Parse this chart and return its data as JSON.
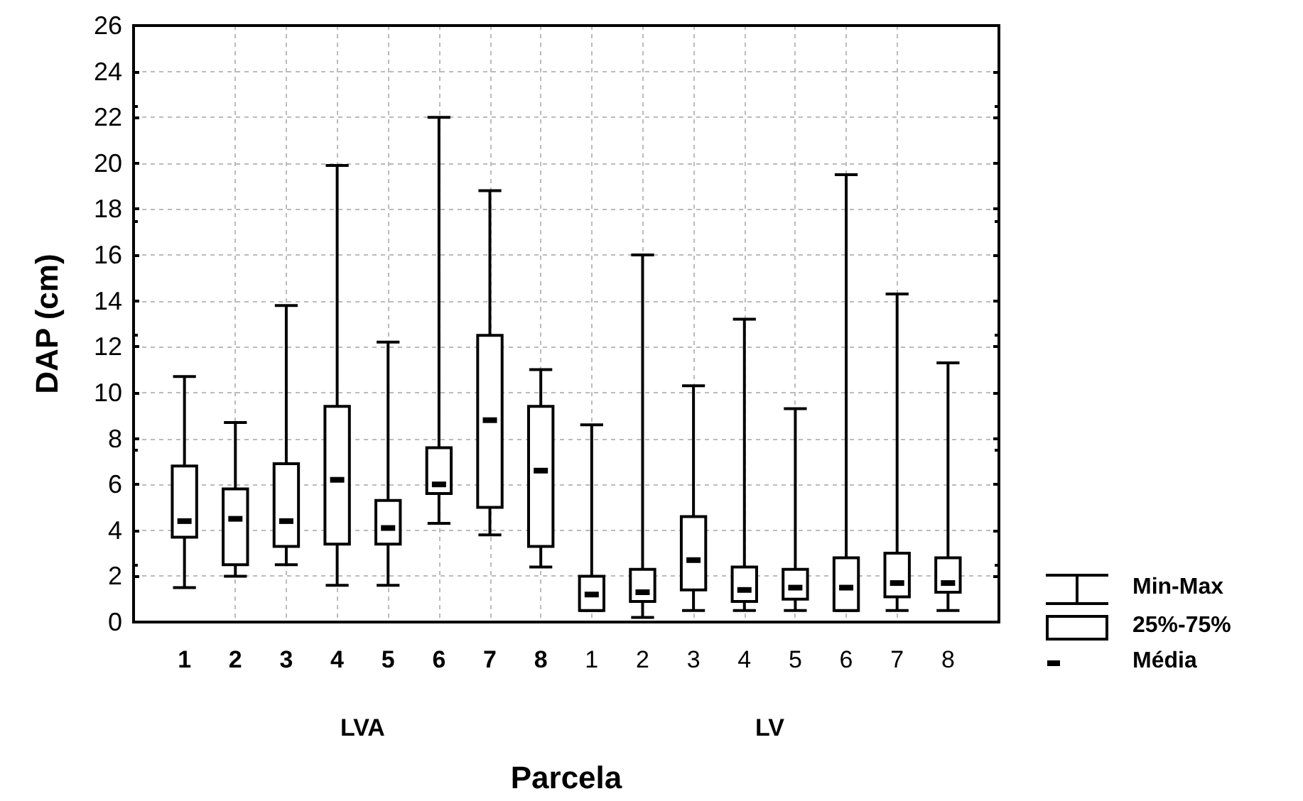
{
  "chart_data": {
    "type": "box",
    "xlabel": "Parcela",
    "ylabel": "DAP (cm)",
    "categories": [
      "1",
      "2",
      "3",
      "4",
      "5",
      "6",
      "7",
      "8",
      "1",
      "2",
      "3",
      "4",
      "5",
      "6",
      "7",
      "8"
    ],
    "boxes": [
      {
        "low": 1.5,
        "q1": 3.7,
        "mean": 4.4,
        "q3": 6.8,
        "high": 10.7
      },
      {
        "low": 2.0,
        "q1": 2.5,
        "mean": 4.5,
        "q3": 5.8,
        "high": 8.7
      },
      {
        "low": 2.5,
        "q1": 3.3,
        "mean": 4.4,
        "q3": 6.9,
        "high": 13.8
      },
      {
        "low": 1.6,
        "q1": 3.4,
        "mean": 6.2,
        "q3": 9.4,
        "high": 19.9
      },
      {
        "low": 1.6,
        "q1": 3.4,
        "mean": 4.1,
        "q3": 5.3,
        "high": 12.2
      },
      {
        "low": 4.3,
        "q1": 5.6,
        "mean": 6.0,
        "q3": 7.6,
        "high": 22.0
      },
      {
        "low": 3.8,
        "q1": 5.0,
        "mean": 8.8,
        "q3": 12.5,
        "high": 18.8
      },
      {
        "low": 2.4,
        "q1": 3.3,
        "mean": 6.6,
        "q3": 9.4,
        "high": 11.0
      },
      {
        "low": 0.5,
        "q1": 0.5,
        "mean": 1.2,
        "q3": 2.0,
        "high": 8.6
      },
      {
        "low": 0.2,
        "q1": 0.9,
        "mean": 1.3,
        "q3": 2.3,
        "high": 16.0
      },
      {
        "low": 0.5,
        "q1": 1.4,
        "mean": 2.7,
        "q3": 4.6,
        "high": 10.3
      },
      {
        "low": 0.5,
        "q1": 0.9,
        "mean": 1.4,
        "q3": 2.4,
        "high": 13.2
      },
      {
        "low": 0.5,
        "q1": 1.0,
        "mean": 1.5,
        "q3": 2.3,
        "high": 9.3
      },
      {
        "low": 0.5,
        "q1": 0.5,
        "mean": 1.5,
        "q3": 2.8,
        "high": 19.5
      },
      {
        "low": 0.5,
        "q1": 1.1,
        "mean": 1.7,
        "q3": 3.0,
        "high": 14.3
      },
      {
        "low": 0.5,
        "q1": 1.3,
        "mean": 1.7,
        "q3": 2.8,
        "high": 11.3
      }
    ],
    "ylim": [
      0,
      26
    ],
    "yticks": [
      0,
      2,
      4,
      6,
      8,
      10,
      12,
      14,
      16,
      18,
      20,
      22,
      24,
      26
    ],
    "grid": true,
    "annotations": [
      "LVA",
      "LV",
      "Min-Max",
      "25%-75%",
      "Média"
    ]
  }
}
